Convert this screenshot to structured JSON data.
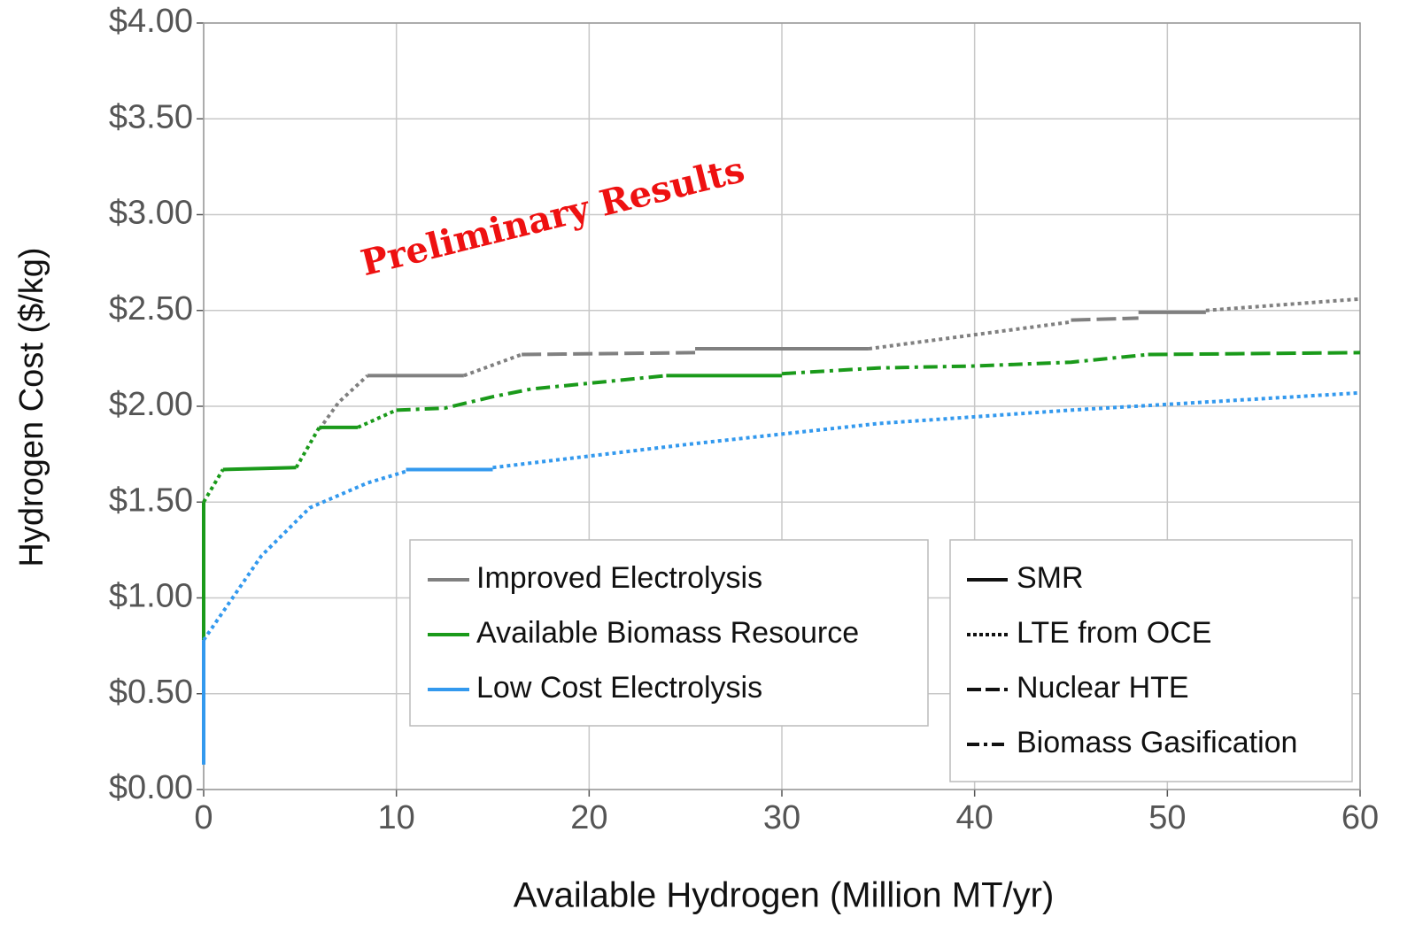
{
  "chart_data": {
    "type": "line",
    "annotation": "Preliminary Results",
    "xlabel": "Available Hydrogen (Million MT/yr)",
    "ylabel": "Hydrogen Cost ($/kg)",
    "xlim": [
      0,
      60
    ],
    "ylim": [
      0,
      4
    ],
    "xticks": [
      0,
      10,
      20,
      30,
      40,
      50,
      60
    ],
    "yticks": [
      {
        "value": 0,
        "label": "$0.00"
      },
      {
        "value": 0.5,
        "label": "$0.50"
      },
      {
        "value": 1,
        "label": "$1.00"
      },
      {
        "value": 1.5,
        "label": "$1.50"
      },
      {
        "value": 2,
        "label": "$2.00"
      },
      {
        "value": 2.5,
        "label": "$2.50"
      },
      {
        "value": 3,
        "label": "$3.00"
      },
      {
        "value": 3.5,
        "label": "$3.50"
      },
      {
        "value": 4,
        "label": "$4.00"
      }
    ],
    "grid": true,
    "linetypes": [
      {
        "name": "SMR",
        "dash": "solid"
      },
      {
        "name": "LTE from OCE",
        "dash": "dotted"
      },
      {
        "name": "Nuclear HTE",
        "dash": "dashed"
      },
      {
        "name": "Biomass Gasification",
        "dash": "dashdot"
      }
    ],
    "series": [
      {
        "name": "Improved Electrolysis",
        "color": "#808080",
        "pieces": [
          {
            "linetype": 1,
            "x": [
              6,
              7,
              8.5
            ],
            "values": [
              1.88,
              2.02,
              2.16
            ]
          },
          {
            "linetype": 0,
            "x": [
              8.5,
              13.5
            ],
            "values": [
              2.16,
              2.16
            ]
          },
          {
            "linetype": 1,
            "x": [
              13.5,
              16.5
            ],
            "values": [
              2.16,
              2.27
            ]
          },
          {
            "linetype": 2,
            "x": [
              16.5,
              25.5
            ],
            "values": [
              2.27,
              2.28
            ]
          },
          {
            "linetype": 0,
            "x": [
              25.5,
              34.5
            ],
            "values": [
              2.3,
              2.3
            ]
          },
          {
            "linetype": 1,
            "x": [
              34.5,
              45
            ],
            "values": [
              2.3,
              2.44
            ]
          },
          {
            "linetype": 2,
            "x": [
              45,
              48.5
            ],
            "values": [
              2.45,
              2.46
            ]
          },
          {
            "linetype": 0,
            "x": [
              48.5,
              52
            ],
            "values": [
              2.49,
              2.49
            ]
          },
          {
            "linetype": 1,
            "x": [
              52,
              60
            ],
            "values": [
              2.5,
              2.56
            ]
          }
        ]
      },
      {
        "name": "Available Biomass Resource",
        "color": "#1a9a1a",
        "pieces": [
          {
            "linetype": 0,
            "x": [
              0,
              0
            ],
            "values": [
              0.78,
              1.5
            ]
          },
          {
            "linetype": 1,
            "x": [
              0,
              1
            ],
            "values": [
              1.5,
              1.67
            ]
          },
          {
            "linetype": 0,
            "x": [
              1,
              4.8
            ],
            "values": [
              1.67,
              1.68
            ]
          },
          {
            "linetype": 1,
            "x": [
              4.8,
              6
            ],
            "values": [
              1.68,
              1.89
            ]
          },
          {
            "linetype": 0,
            "x": [
              6,
              8
            ],
            "values": [
              1.89,
              1.89
            ]
          },
          {
            "linetype": 1,
            "x": [
              8,
              10
            ],
            "values": [
              1.89,
              1.98
            ]
          },
          {
            "linetype": 3,
            "x": [
              10,
              12.5,
              15,
              17,
              20,
              24
            ],
            "values": [
              1.98,
              1.99,
              2.05,
              2.09,
              2.12,
              2.16
            ]
          },
          {
            "linetype": 0,
            "x": [
              24,
              30
            ],
            "values": [
              2.16,
              2.16
            ]
          },
          {
            "linetype": 3,
            "x": [
              30,
              35,
              40,
              45,
              49
            ],
            "values": [
              2.17,
              2.2,
              2.21,
              2.23,
              2.27
            ]
          },
          {
            "linetype": 2,
            "x": [
              49,
              60
            ],
            "values": [
              2.27,
              2.28
            ]
          }
        ]
      },
      {
        "name": "Low Cost Electrolysis",
        "color": "#3399ee",
        "pieces": [
          {
            "linetype": 0,
            "x": [
              0,
              0
            ],
            "values": [
              0.13,
              0.78
            ]
          },
          {
            "linetype": 1,
            "x": [
              0,
              3,
              5.5,
              8.5,
              10.5
            ],
            "values": [
              0.78,
              1.22,
              1.47,
              1.6,
              1.66
            ]
          },
          {
            "linetype": 0,
            "x": [
              10.5,
              15
            ],
            "values": [
              1.67,
              1.67
            ]
          },
          {
            "linetype": 1,
            "x": [
              15,
              25,
              35,
              45,
              60
            ],
            "values": [
              1.68,
              1.8,
              1.91,
              1.98,
              2.07
            ]
          }
        ]
      }
    ]
  }
}
